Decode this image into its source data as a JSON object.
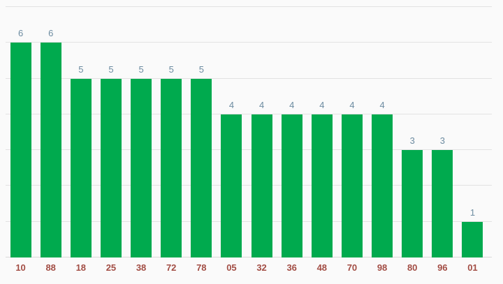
{
  "chart_data": {
    "type": "bar",
    "title": "",
    "xlabel": "",
    "ylabel": "",
    "categories": [
      "10",
      "88",
      "18",
      "25",
      "38",
      "72",
      "78",
      "05",
      "32",
      "36",
      "48",
      "70",
      "98",
      "80",
      "96",
      "01"
    ],
    "values": [
      6,
      6,
      5,
      5,
      5,
      5,
      5,
      4,
      4,
      4,
      4,
      4,
      4,
      3,
      3,
      1
    ],
    "ylim": [
      0,
      7
    ],
    "grid": true,
    "grid_step": 1,
    "legend": "none",
    "value_labels_shown": true,
    "colors": {
      "bar": "#00aa4e",
      "value_label": "#6d8ca1",
      "category_label": "#a24d44",
      "gridline": "#e2e2e2",
      "baseline": "#d9d9d9",
      "background": "#fafafa"
    }
  }
}
